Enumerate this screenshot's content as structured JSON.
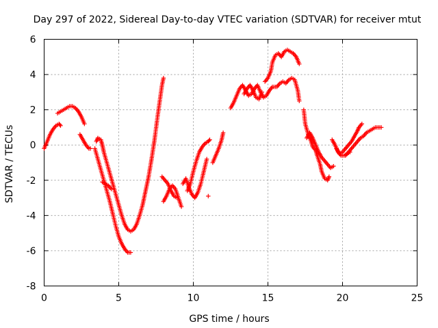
{
  "chart_data": {
    "type": "scatter",
    "title": "Day 297 of 2022, Sidereal Day-to-day VTEC variation (SDTVAR) for receiver mtut",
    "xlabel": "GPS time / hours",
    "ylabel": "SDTVAR / TECUs",
    "xlim": [
      0,
      25
    ],
    "ylim": [
      -8,
      6
    ],
    "xticks": [
      "0",
      "5",
      "10",
      "15",
      "20",
      "25"
    ],
    "yticks": [
      "-8",
      "-6",
      "-4",
      "-2",
      "0",
      "2",
      "4",
      "6"
    ],
    "grid": true,
    "marker": "+",
    "color": "#ff0000",
    "series": [
      {
        "segments": [
          [
            [
              0.0,
              -0.2
            ],
            [
              0.2,
              0.2
            ],
            [
              0.4,
              0.6
            ],
            [
              0.6,
              0.9
            ],
            [
              0.8,
              1.1
            ],
            [
              1.0,
              1.2
            ],
            [
              1.1,
              1.1
            ]
          ],
          [
            [
              0.9,
              1.8
            ],
            [
              1.1,
              1.9
            ],
            [
              1.3,
              2.0
            ],
            [
              1.5,
              2.1
            ],
            [
              1.7,
              2.2
            ],
            [
              1.9,
              2.2
            ],
            [
              2.1,
              2.1
            ],
            [
              2.3,
              1.9
            ],
            [
              2.5,
              1.6
            ],
            [
              2.7,
              1.2
            ]
          ],
          [
            [
              2.4,
              0.6
            ],
            [
              2.6,
              0.3
            ],
            [
              2.8,
              0.0
            ],
            [
              3.0,
              -0.2
            ],
            [
              3.1,
              -0.2
            ]
          ],
          [
            [
              3.5,
              0.2
            ],
            [
              3.6,
              0.4
            ],
            [
              3.8,
              0.3
            ],
            [
              3.9,
              0.0
            ],
            [
              4.0,
              -0.4
            ],
            [
              4.2,
              -1.0
            ],
            [
              4.4,
              -1.6
            ],
            [
              4.6,
              -2.2
            ],
            [
              4.8,
              -2.8
            ],
            [
              5.0,
              -3.4
            ],
            [
              5.2,
              -4.0
            ],
            [
              5.4,
              -4.5
            ],
            [
              5.6,
              -4.8
            ],
            [
              5.8,
              -4.9
            ],
            [
              6.0,
              -4.8
            ],
            [
              6.2,
              -4.5
            ],
            [
              6.4,
              -4.0
            ],
            [
              6.6,
              -3.4
            ],
            [
              6.8,
              -2.6
            ],
            [
              7.0,
              -1.8
            ],
            [
              7.2,
              -0.8
            ],
            [
              7.4,
              0.3
            ],
            [
              7.6,
              1.6
            ],
            [
              7.8,
              2.8
            ],
            [
              7.9,
              3.4
            ],
            [
              8.0,
              3.8
            ]
          ],
          [
            [
              3.4,
              -0.2
            ],
            [
              3.6,
              -0.8
            ],
            [
              3.8,
              -1.4
            ],
            [
              4.0,
              -2.0
            ],
            [
              4.2,
              -2.6
            ],
            [
              4.4,
              -3.2
            ],
            [
              4.6,
              -3.9
            ],
            [
              4.8,
              -4.6
            ],
            [
              5.0,
              -5.2
            ],
            [
              5.2,
              -5.6
            ],
            [
              5.4,
              -5.9
            ],
            [
              5.6,
              -6.1
            ],
            [
              5.8,
              -6.1
            ]
          ],
          [
            [
              3.9,
              -2.1
            ],
            [
              4.1,
              -2.2
            ],
            [
              4.3,
              -2.3
            ],
            [
              4.5,
              -2.5
            ]
          ],
          [
            [
              7.9,
              -1.8
            ],
            [
              8.1,
              -2.0
            ],
            [
              8.3,
              -2.2
            ],
            [
              8.5,
              -2.6
            ],
            [
              8.7,
              -2.9
            ],
            [
              8.9,
              -3.0
            ]
          ],
          [
            [
              8.0,
              -3.2
            ],
            [
              8.2,
              -2.9
            ],
            [
              8.4,
              -2.5
            ],
            [
              8.6,
              -2.3
            ],
            [
              8.8,
              -2.5
            ],
            [
              9.0,
              -3.0
            ],
            [
              9.2,
              -3.5
            ]
          ],
          [
            [
              9.3,
              -2.2
            ],
            [
              9.5,
              -1.9
            ],
            [
              9.7,
              -2.4
            ],
            [
              9.9,
              -2.8
            ],
            [
              10.1,
              -3.0
            ],
            [
              10.3,
              -2.7
            ],
            [
              10.5,
              -2.2
            ],
            [
              10.7,
              -1.5
            ],
            [
              10.9,
              -0.8
            ]
          ],
          [
            [
              9.6,
              -2.6
            ],
            [
              9.8,
              -2.2
            ],
            [
              10.0,
              -1.5
            ],
            [
              10.2,
              -0.9
            ],
            [
              10.4,
              -0.4
            ],
            [
              10.6,
              -0.1
            ],
            [
              10.8,
              0.1
            ],
            [
              11.0,
              0.2
            ],
            [
              11.1,
              0.3
            ]
          ],
          [
            [
              11.0,
              -2.9
            ]
          ],
          [
            [
              11.3,
              -1.0
            ],
            [
              11.5,
              -0.6
            ],
            [
              11.7,
              -0.2
            ],
            [
              11.9,
              0.3
            ],
            [
              12.0,
              0.7
            ]
          ],
          [
            [
              12.5,
              2.1
            ],
            [
              12.7,
              2.4
            ],
            [
              12.9,
              2.8
            ],
            [
              13.1,
              3.2
            ],
            [
              13.3,
              3.4
            ],
            [
              13.5,
              3.1
            ],
            [
              13.7,
              2.8
            ],
            [
              13.9,
              2.9
            ],
            [
              14.1,
              3.2
            ],
            [
              14.3,
              3.4
            ],
            [
              14.5,
              3.0
            ],
            [
              14.7,
              2.7
            ],
            [
              14.9,
              2.8
            ],
            [
              15.1,
              3.1
            ],
            [
              15.3,
              3.3
            ],
            [
              15.5,
              3.3
            ]
          ],
          [
            [
              13.4,
              2.9
            ],
            [
              13.6,
              3.2
            ],
            [
              13.8,
              3.4
            ],
            [
              14.0,
              3.1
            ],
            [
              14.2,
              2.7
            ],
            [
              14.4,
              2.6
            ],
            [
              14.6,
              3.0
            ]
          ],
          [
            [
              14.8,
              3.6
            ],
            [
              15.0,
              3.8
            ],
            [
              15.2,
              4.2
            ],
            [
              15.3,
              4.7
            ],
            [
              15.5,
              5.1
            ],
            [
              15.7,
              5.2
            ],
            [
              15.9,
              5.0
            ],
            [
              16.1,
              5.3
            ],
            [
              16.3,
              5.4
            ],
            [
              16.5,
              5.3
            ],
            [
              16.7,
              5.2
            ],
            [
              16.9,
              5.0
            ],
            [
              17.1,
              4.6
            ]
          ],
          [
            [
              15.6,
              3.3
            ],
            [
              15.8,
              3.5
            ],
            [
              16.0,
              3.6
            ],
            [
              16.2,
              3.5
            ],
            [
              16.4,
              3.7
            ],
            [
              16.6,
              3.8
            ],
            [
              16.8,
              3.7
            ],
            [
              17.0,
              3.1
            ],
            [
              17.1,
              2.5
            ]
          ],
          [
            [
              17.4,
              2.0
            ],
            [
              17.5,
              1.2
            ],
            [
              17.7,
              0.6
            ],
            [
              17.9,
              0.2
            ],
            [
              18.0,
              -0.1
            ],
            [
              18.2,
              -0.3
            ],
            [
              18.3,
              -0.6
            ],
            [
              18.5,
              -1.1
            ],
            [
              18.6,
              -1.5
            ],
            [
              18.8,
              -1.9
            ],
            [
              19.0,
              -2.0
            ],
            [
              19.1,
              -1.8
            ]
          ],
          [
            [
              17.6,
              0.4
            ],
            [
              17.8,
              0.7
            ],
            [
              18.0,
              0.4
            ],
            [
              18.2,
              0.0
            ],
            [
              18.4,
              -0.4
            ],
            [
              18.6,
              -0.7
            ],
            [
              18.8,
              -0.9
            ],
            [
              19.0,
              -1.1
            ],
            [
              19.2,
              -1.3
            ],
            [
              19.4,
              -1.2
            ]
          ],
          [
            [
              19.3,
              0.3
            ],
            [
              19.5,
              0.0
            ],
            [
              19.7,
              -0.4
            ],
            [
              19.9,
              -0.6
            ],
            [
              20.1,
              -0.6
            ],
            [
              20.3,
              -0.5
            ],
            [
              20.5,
              -0.4
            ]
          ],
          [
            [
              19.6,
              -0.2
            ],
            [
              19.8,
              -0.5
            ],
            [
              20.0,
              -0.4
            ],
            [
              20.2,
              -0.2
            ],
            [
              20.4,
              0.0
            ],
            [
              20.6,
              0.2
            ],
            [
              20.8,
              0.5
            ],
            [
              21.0,
              0.8
            ],
            [
              21.1,
              1.0
            ],
            [
              21.3,
              1.2
            ]
          ],
          [
            [
              20.2,
              -0.6
            ],
            [
              20.4,
              -0.4
            ],
            [
              20.6,
              -0.2
            ],
            [
              20.8,
              0.0
            ],
            [
              21.0,
              0.2
            ],
            [
              21.2,
              0.4
            ],
            [
              21.4,
              0.5
            ],
            [
              21.6,
              0.7
            ],
            [
              21.8,
              0.8
            ],
            [
              22.0,
              0.9
            ],
            [
              22.2,
              1.0
            ],
            [
              22.4,
              1.0
            ],
            [
              22.6,
              1.0
            ]
          ]
        ]
      }
    ]
  }
}
